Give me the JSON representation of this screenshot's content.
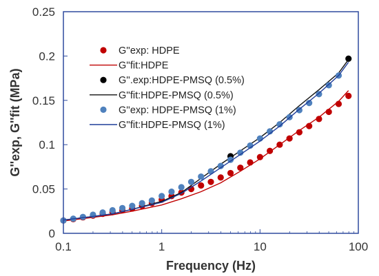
{
  "chart_data": {
    "type": "scatter",
    "xlabel": "Frequency (Hz)",
    "ylabel": "G''exp, G''fit (MPa)",
    "x_scale": "log",
    "xlim": [
      0.1,
      100
    ],
    "ylim": [
      0,
      0.25
    ],
    "x_ticks": [
      "0.1",
      "1",
      "10",
      "100"
    ],
    "y_ticks": [
      "0",
      "0.05",
      "0.1",
      "0.15",
      "0.2",
      "0.25"
    ],
    "grid": false,
    "legend_position": "top-left",
    "series": [
      {
        "name": "G''exp: HDPE",
        "kind": "points",
        "color": "#c00000",
        "x": [
          0.1,
          0.126,
          0.158,
          0.2,
          0.251,
          0.316,
          0.398,
          0.501,
          0.631,
          0.794,
          1,
          1.259,
          1.585,
          1.995,
          2.512,
          3.162,
          3.981,
          5.012,
          6.31,
          7.943,
          10,
          12.59,
          15.85,
          19.95,
          25.12,
          31.62,
          39.81,
          50.12,
          63.1,
          79.43
        ],
        "y": [
          0.0145,
          0.016,
          0.018,
          0.02,
          0.022,
          0.024,
          0.026,
          0.028,
          0.031,
          0.034,
          0.038,
          0.042,
          0.046,
          0.05,
          0.054,
          0.058,
          0.063,
          0.068,
          0.074,
          0.08,
          0.086,
          0.093,
          0.1,
          0.107,
          0.114,
          0.121,
          0.129,
          0.137,
          0.146,
          0.155
        ]
      },
      {
        "name": "G''fit:HDPE",
        "kind": "line",
        "color": "#c00000",
        "x": [
          0.1,
          0.2,
          0.316,
          0.501,
          1,
          1.585,
          2.512,
          3.981,
          6.31,
          10,
          15.85,
          25.12,
          39.81,
          63.1,
          79.43
        ],
        "y": [
          0.014,
          0.018,
          0.021,
          0.025,
          0.032,
          0.039,
          0.047,
          0.057,
          0.07,
          0.084,
          0.1,
          0.116,
          0.131,
          0.149,
          0.161
        ]
      },
      {
        "name": "G''.exp:HDPE-PMSQ (0.5%)",
        "kind": "points",
        "color": "#000000",
        "x": [
          5.012,
          79.43
        ],
        "y": [
          0.087,
          0.197
        ]
      },
      {
        "name": "G''fit:HDPE-PMSQ (0.5%)",
        "kind": "line",
        "color": "#111111",
        "x": [
          0.1,
          0.2,
          0.316,
          0.501,
          1,
          1.585,
          2.512,
          3.981,
          6.31,
          10,
          15.85,
          25.12,
          39.81,
          63.1,
          79.43
        ],
        "y": [
          0.015,
          0.019,
          0.022,
          0.027,
          0.036,
          0.046,
          0.062,
          0.078,
          0.093,
          0.108,
          0.125,
          0.144,
          0.162,
          0.181,
          0.196
        ]
      },
      {
        "name": "G''exp: HDPE-PMSQ (1%)",
        "kind": "points",
        "color": "#4f81bd",
        "x": [
          0.1,
          0.126,
          0.158,
          0.2,
          0.251,
          0.316,
          0.398,
          0.501,
          0.631,
          0.794,
          1,
          1.259,
          1.585,
          1.995,
          2.512,
          3.162,
          3.981,
          5.012,
          6.31,
          7.943,
          10,
          12.59,
          15.85,
          19.95,
          25.12,
          31.62,
          39.81,
          50.12,
          63.1
        ],
        "y": [
          0.0145,
          0.0165,
          0.0185,
          0.021,
          0.0235,
          0.026,
          0.0285,
          0.031,
          0.034,
          0.037,
          0.042,
          0.047,
          0.052,
          0.058,
          0.064,
          0.07,
          0.076,
          0.083,
          0.091,
          0.099,
          0.107,
          0.115,
          0.123,
          0.131,
          0.139,
          0.147,
          0.157,
          0.167,
          0.178
        ]
      },
      {
        "name": "G''fit:HDPE-PMSQ (1%)",
        "kind": "line",
        "color": "#1f3d99",
        "x": [
          0.1,
          0.2,
          0.316,
          0.501,
          1,
          1.585,
          2.512,
          3.981,
          6.31,
          10,
          15.85,
          25.12,
          39.81,
          63.1,
          79.43
        ],
        "y": [
          0.015,
          0.019,
          0.022,
          0.027,
          0.035,
          0.045,
          0.059,
          0.074,
          0.089,
          0.104,
          0.121,
          0.14,
          0.158,
          0.178,
          0.193
        ]
      }
    ]
  }
}
